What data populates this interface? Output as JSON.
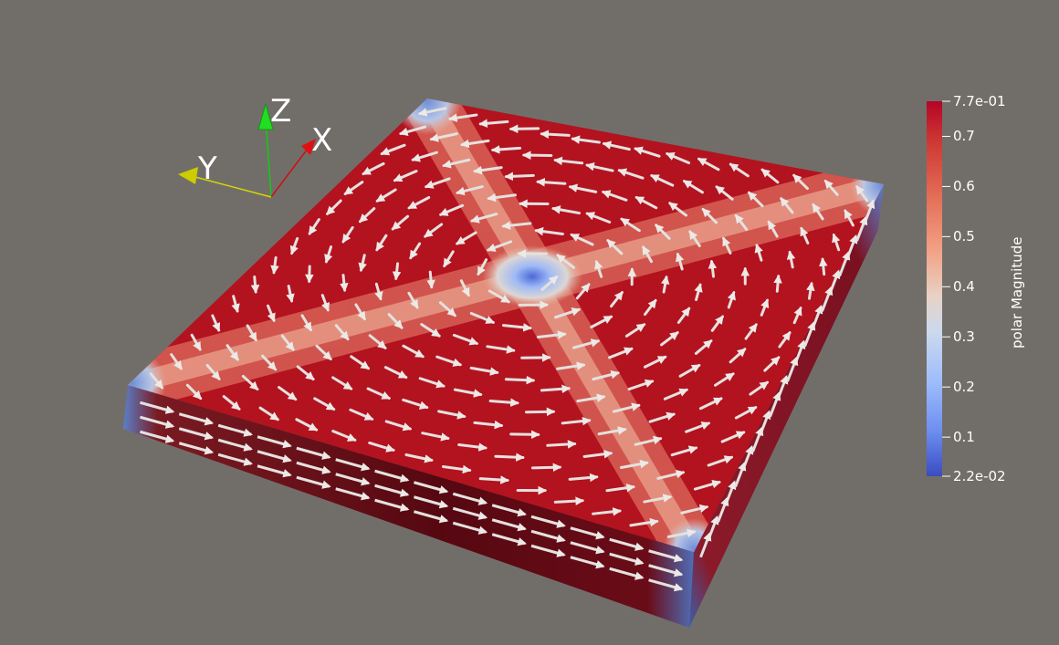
{
  "viewer": {
    "background": "#716e6a",
    "field_name": "polar Magnitude"
  },
  "color_legend": {
    "title": "polar Magnitude",
    "range": [
      0.022,
      0.77
    ],
    "labels": [
      {
        "text": "7.7e-01",
        "value": 0.77
      },
      {
        "text": "0.7",
        "value": 0.7
      },
      {
        "text": "0.6",
        "value": 0.6
      },
      {
        "text": "0.5",
        "value": 0.5
      },
      {
        "text": "0.4",
        "value": 0.4
      },
      {
        "text": "0.3",
        "value": 0.3
      },
      {
        "text": "0.2",
        "value": 0.2
      },
      {
        "text": "0.1",
        "value": 0.1
      },
      {
        "text": "2.2e-02",
        "value": 0.022
      }
    ],
    "colormap": [
      "#b40426",
      "#dc5d4a",
      "#f4987a",
      "#f2cbb7",
      "#dddcdc",
      "#aac7fd",
      "#7b9ff9",
      "#3b4cc0"
    ]
  },
  "axes_triad": {
    "x_label": "X",
    "y_label": "Y",
    "z_label": "Z",
    "x_color": "#cc1111",
    "y_color": "#d6d600",
    "z_color": "#11cc11"
  }
}
